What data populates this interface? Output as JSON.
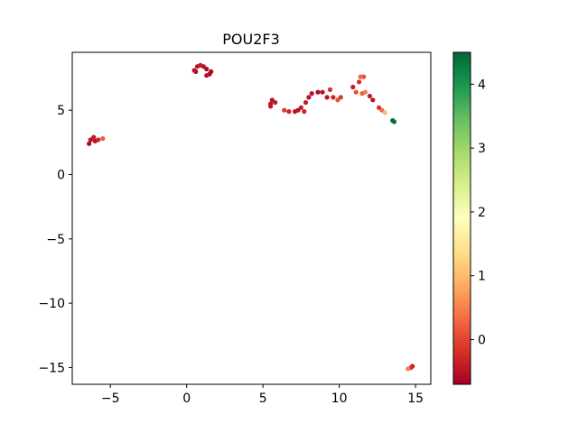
{
  "chart_data": {
    "type": "scatter",
    "title": "POU2F3",
    "xlabel": "",
    "ylabel": "",
    "xlim": [
      -7.5,
      16.0
    ],
    "ylim": [
      -16.3,
      9.5
    ],
    "xticks": [
      -5,
      0,
      5,
      10,
      15
    ],
    "yticks": [
      5,
      0,
      -5,
      -10,
      -15
    ],
    "grid": false,
    "colormap": "RdYlGn",
    "colorbar": {
      "range": [
        -0.7,
        4.5
      ],
      "ticks": [
        0,
        1,
        2,
        3,
        4
      ],
      "stops": [
        "#a50026",
        "#d73027",
        "#f46d43",
        "#fdae61",
        "#fee08b",
        "#ffffbf",
        "#d9ef8b",
        "#a6d96a",
        "#66bd63",
        "#1a9850",
        "#006837"
      ]
    },
    "points": [
      {
        "x": -6.4,
        "y": 2.4,
        "v": -0.6
      },
      {
        "x": -6.3,
        "y": 2.7,
        "v": -0.5
      },
      {
        "x": -6.1,
        "y": 2.9,
        "v": -0.4
      },
      {
        "x": -6.0,
        "y": 2.6,
        "v": -0.5
      },
      {
        "x": -5.8,
        "y": 2.7,
        "v": -0.3
      },
      {
        "x": -5.5,
        "y": 2.8,
        "v": 0.2
      },
      {
        "x": 0.5,
        "y": 8.1,
        "v": -0.5
      },
      {
        "x": 0.7,
        "y": 8.4,
        "v": -0.5
      },
      {
        "x": 0.6,
        "y": 8.0,
        "v": -0.6
      },
      {
        "x": 0.9,
        "y": 8.5,
        "v": -0.4
      },
      {
        "x": 1.1,
        "y": 8.4,
        "v": -0.5
      },
      {
        "x": 1.3,
        "y": 8.2,
        "v": -0.6
      },
      {
        "x": 1.3,
        "y": 7.7,
        "v": -0.5
      },
      {
        "x": 1.5,
        "y": 7.8,
        "v": -0.6
      },
      {
        "x": 1.6,
        "y": 8.0,
        "v": -0.6
      },
      {
        "x": 5.5,
        "y": 5.5,
        "v": -0.5
      },
      {
        "x": 5.6,
        "y": 5.8,
        "v": -0.5
      },
      {
        "x": 5.5,
        "y": 5.3,
        "v": -0.4
      },
      {
        "x": 5.8,
        "y": 5.6,
        "v": -0.4
      },
      {
        "x": 6.4,
        "y": 5.0,
        "v": -0.1
      },
      {
        "x": 6.7,
        "y": 4.9,
        "v": -0.3
      },
      {
        "x": 7.1,
        "y": 4.9,
        "v": -0.5
      },
      {
        "x": 7.3,
        "y": 5.0,
        "v": -0.5
      },
      {
        "x": 7.5,
        "y": 5.2,
        "v": -0.4
      },
      {
        "x": 7.7,
        "y": 4.9,
        "v": -0.3
      },
      {
        "x": 7.8,
        "y": 5.6,
        "v": -0.4
      },
      {
        "x": 8.0,
        "y": 6.0,
        "v": -0.5
      },
      {
        "x": 8.2,
        "y": 6.3,
        "v": -0.5
      },
      {
        "x": 8.6,
        "y": 6.4,
        "v": -0.6
      },
      {
        "x": 8.9,
        "y": 6.4,
        "v": -0.5
      },
      {
        "x": 9.2,
        "y": 6.0,
        "v": -0.5
      },
      {
        "x": 9.4,
        "y": 6.6,
        "v": -0.2
      },
      {
        "x": 9.6,
        "y": 6.0,
        "v": -0.3
      },
      {
        "x": 9.9,
        "y": 5.8,
        "v": 0.1
      },
      {
        "x": 10.1,
        "y": 6.0,
        "v": -0.1
      },
      {
        "x": 10.9,
        "y": 6.8,
        "v": -0.4
      },
      {
        "x": 11.1,
        "y": 6.4,
        "v": 0.1
      },
      {
        "x": 11.3,
        "y": 7.2,
        "v": -0.2
      },
      {
        "x": 11.4,
        "y": 7.6,
        "v": 0.3
      },
      {
        "x": 11.6,
        "y": 7.6,
        "v": 0.1
      },
      {
        "x": 11.5,
        "y": 6.3,
        "v": 0.2
      },
      {
        "x": 11.7,
        "y": 6.4,
        "v": 0.4
      },
      {
        "x": 12.0,
        "y": 6.1,
        "v": -0.4
      },
      {
        "x": 12.2,
        "y": 5.8,
        "v": -0.5
      },
      {
        "x": 12.6,
        "y": 5.2,
        "v": -0.2
      },
      {
        "x": 12.8,
        "y": 5.0,
        "v": 0.3
      },
      {
        "x": 13.0,
        "y": 4.8,
        "v": 1.0
      },
      {
        "x": 13.5,
        "y": 4.2,
        "v": 4.5
      },
      {
        "x": 13.6,
        "y": 4.1,
        "v": 4.3
      },
      {
        "x": 14.5,
        "y": -15.1,
        "v": 0.5
      },
      {
        "x": 14.7,
        "y": -15.0,
        "v": -0.2
      },
      {
        "x": 14.8,
        "y": -14.9,
        "v": -0.4
      }
    ]
  }
}
